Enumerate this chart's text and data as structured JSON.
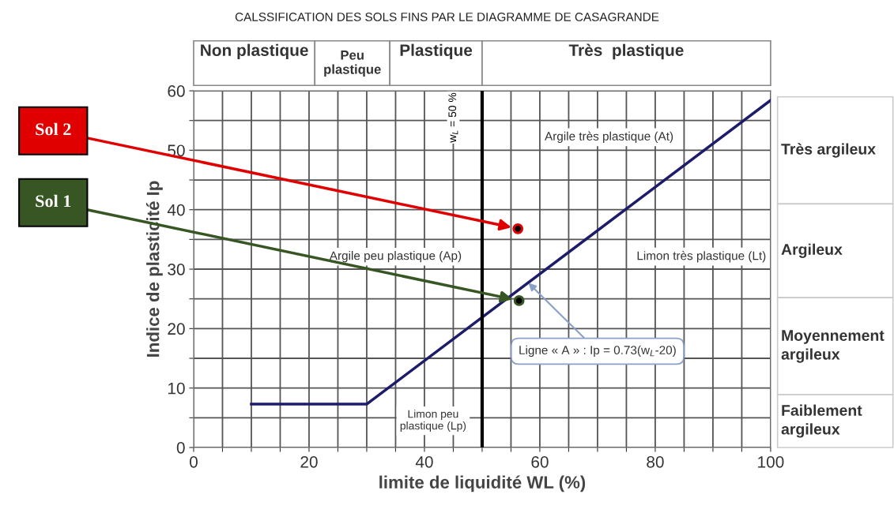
{
  "chart_data": {
    "type": "scatter",
    "title": "CALSSIFICATION DES SOLS FINS PAR LE DIAGRAMME DE CASAGRANDE",
    "xlabel": "limite de liquidité WL (%)",
    "ylabel": "Indice de plasticité Ip",
    "xlim": [
      0,
      100
    ],
    "xticks": [
      0,
      {
        "value": 5,
        "label": null
      },
      {
        "value": 10,
        "label": null
      },
      {
        "value": 15,
        "label": null
      },
      20,
      {
        "value": 25,
        "label": null
      },
      {
        "value": 30,
        "label": null
      },
      {
        "value": 35,
        "label": null
      },
      40,
      {
        "value": 45,
        "label": null
      },
      {
        "value": 50,
        "label": null
      },
      {
        "value": 55,
        "label": null
      },
      60,
      {
        "value": 65,
        "label": null
      },
      {
        "value": 70,
        "label": null
      },
      {
        "value": 75,
        "label": null
      },
      80,
      {
        "value": 85,
        "label": null
      },
      {
        "value": 90,
        "label": null
      },
      {
        "value": 95,
        "label": null
      },
      100
    ],
    "ylim": [
      0,
      60
    ],
    "yticks": [
      0,
      {
        "value": 5,
        "label": null
      },
      10,
      {
        "value": 15,
        "label": null
      },
      20,
      {
        "value": 25,
        "label": null
      },
      30,
      {
        "value": 35,
        "label": null
      },
      40,
      {
        "value": 45,
        "label": null
      },
      50,
      {
        "value": 55,
        "label": null
      },
      60
    ],
    "grid": true,
    "series": [
      {
        "type": "line",
        "color": "#1c1c6b",
        "x": [
          10,
          30,
          100
        ],
        "values": [
          7.3,
          7.3,
          58.4
        ]
      },
      {
        "name": "Sol 2",
        "color": "#e00000",
        "marker": "circle",
        "x": [
          56.2
        ],
        "values": [
          36.8
        ]
      },
      {
        "name": "Sol 1",
        "color": "#375623",
        "marker": "circle",
        "x": [
          56.4
        ],
        "values": [
          24.7
        ]
      }
    ],
    "ref_lines": [
      {
        "axis": "x",
        "value": 50,
        "label": "w$_{L}$ = 50 %",
        "color": "#000000"
      }
    ],
    "annotations": [
      "Non plastique",
      "Peu\nplastique",
      "Plastique",
      "Très  plastique",
      "Très argileux",
      "Argileux",
      "Moyennement\nargileux",
      "Faiblement\nargileux",
      "Argile très plastique (At)",
      "Argile peu plastique (Ap)",
      "Limon très plastique (Lt)",
      "Limon peu\nplastique (Lp)",
      {
        "text": "Ligne « A » : Ip = 0.73(w$_{L}$-20)",
        "x": 58,
        "y": 27.7
      }
    ]
  }
}
